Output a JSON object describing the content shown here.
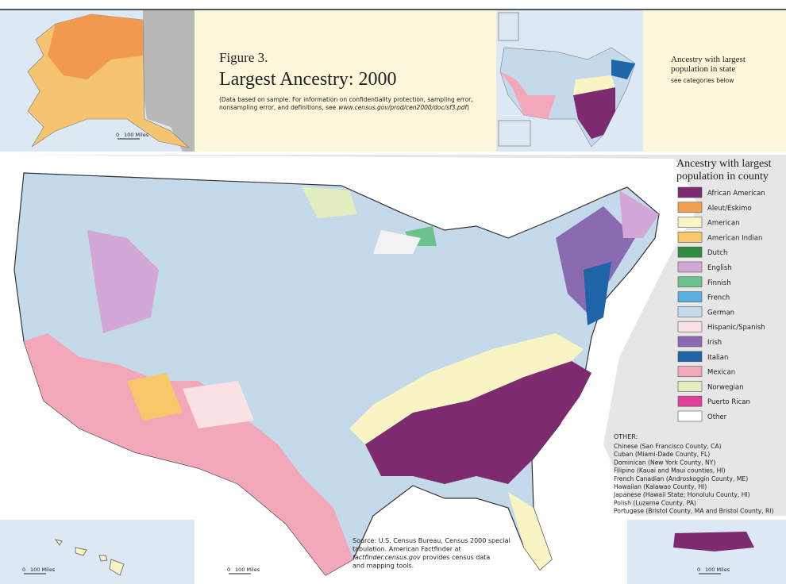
{
  "header": {
    "figure": "Figure 3.",
    "title": "Largest Ancestry: 2000",
    "note_lines": [
      "(Data based on sample. For information on confidentiality protection, sampling error,",
      "nonsampling error, and definitions, see"
    ],
    "note_url": "www.census.gov/prod/cen2000/doc/sf3.pdf",
    "note_end": ")"
  },
  "state_legend": {
    "title_lines": [
      "Ancestry with largest",
      "population in state"
    ],
    "subtitle": "see categories below"
  },
  "county_legend": {
    "title_lines": [
      "Ancestry with largest",
      "population in county"
    ],
    "items": [
      {
        "label": "African American",
        "color": "#7d2a6e"
      },
      {
        "label": "Aleut/Eskimo",
        "color": "#f0a050"
      },
      {
        "label": "American",
        "color": "#f8f4c4"
      },
      {
        "label": "American Indian",
        "color": "#f6c86a"
      },
      {
        "label": "Dutch",
        "color": "#2e8b3e"
      },
      {
        "label": "English",
        "color": "#d4a8d6"
      },
      {
        "label": "Finnish",
        "color": "#6cc28a"
      },
      {
        "label": "French",
        "color": "#5ab0e0"
      },
      {
        "label": "German",
        "color": "#c4daea"
      },
      {
        "label": "Hispanic/Spanish",
        "color": "#fbe0e4"
      },
      {
        "label": "Irish",
        "color": "#8a6ab0"
      },
      {
        "label": "Italian",
        "color": "#1e64a8"
      },
      {
        "label": "Mexican",
        "color": "#f2a8b8"
      },
      {
        "label": "Norwegian",
        "color": "#e2eec0"
      },
      {
        "label": "Puerto Rican",
        "color": "#e0409a"
      },
      {
        "label": "Other",
        "color": "#ffffff"
      }
    ]
  },
  "other": {
    "title": "OTHER:",
    "items": [
      "Chinese (San Francisco County, CA)",
      "Cuban (Miami-Dade County, FL)",
      "Dominican (New York County, NY)",
      "Filipino (Kauai and Maui counties, HI)",
      "French Canadian (Androskoggin County, ME)",
      "Hawaiian (Kalawao County, HI)",
      "Japanese (Hawaii State; Honolulu County, HI)",
      "Polish (Luzerne County, PA)",
      "Portugese (Bristol County, MA and Bristol County, RI)"
    ]
  },
  "source": {
    "lines": [
      "Source: U.S. Census Bureau, Census 2000 special",
      "tabulation. American Factfinder at"
    ],
    "url": "factfinder.census.gov",
    "url_after": " provides census data",
    "last_line": "and mapping tools."
  },
  "scales": [
    {
      "zero": "0",
      "label": "100 Miles"
    },
    {
      "zero": "0",
      "label": "100 Miles"
    },
    {
      "zero": "0",
      "label": "100 Miles"
    },
    {
      "zero": "0",
      "label": "100 Miles"
    }
  ]
}
